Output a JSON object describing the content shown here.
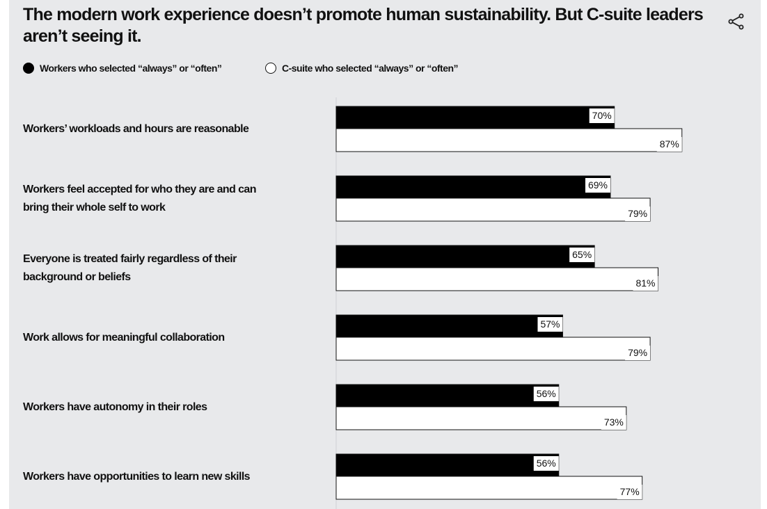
{
  "title": "The modern work experience doesn’t promote human sustainability. But C-suite leaders aren’t seeing it.",
  "share_icon": "share-icon",
  "legend": [
    {
      "label": "Workers who selected “always” or “often”",
      "marker": "filled"
    },
    {
      "label": "C-suite who selected “always” or “often”",
      "marker": "hollow"
    }
  ],
  "chart_data": {
    "type": "bar",
    "orientation": "horizontal",
    "categories": [
      "Workers’ workloads and hours are reasonable",
      "Workers feel accepted for who they are and can bring their whole self to work",
      "Everyone is treated fairly regardless of their background or beliefs",
      "Work allows for meaningful collaboration",
      "Workers have autonomy in their roles",
      "Workers have opportunities to learn new skills"
    ],
    "category_lines": [
      [
        "Workers’ workloads and hours are reasonable"
      ],
      [
        "Workers feel accepted for who they are and can",
        "bring their whole self to work"
      ],
      [
        "Everyone is treated fairly regardless of their",
        "background or beliefs"
      ],
      [
        "Work allows for meaningful collaboration"
      ],
      [
        "Workers have autonomy in their roles"
      ],
      [
        "Workers have opportunities to learn new skills"
      ]
    ],
    "series": [
      {
        "name": "Workers who selected “always” or “often”",
        "values": [
          70,
          69,
          65,
          57,
          56,
          56
        ],
        "color": "#000000"
      },
      {
        "name": "C-suite who selected “always” or “often”",
        "values": [
          87,
          79,
          81,
          79,
          73,
          77
        ],
        "color": "#ffffff"
      }
    ],
    "value_suffix": "%",
    "xlim": [
      0,
      100
    ],
    "legend_position": "top-left",
    "grid": false
  }
}
